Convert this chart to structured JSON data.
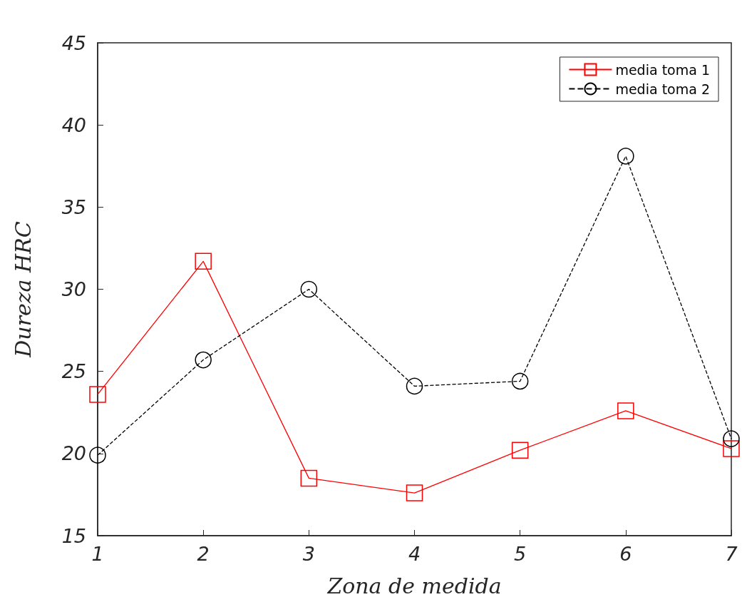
{
  "chart_data": {
    "type": "line",
    "xlabel": "Zona de medida",
    "ylabel": "Dureza HRC",
    "x": [
      1,
      2,
      3,
      4,
      5,
      6,
      7
    ],
    "series": [
      {
        "name": "media toma 1",
        "color": "#ff0000",
        "marker": "square",
        "line_style": "solid",
        "values": [
          23.6,
          31.7,
          18.5,
          17.6,
          20.2,
          22.6,
          20.3
        ]
      },
      {
        "name": "media toma 2",
        "color": "#000000",
        "marker": "circle",
        "line_style": "dashed",
        "values": [
          19.9,
          25.7,
          30.0,
          24.1,
          24.4,
          38.1,
          20.9
        ]
      }
    ],
    "xlim": [
      1,
      7
    ],
    "xticks": [
      1,
      2,
      3,
      4,
      5,
      6,
      7
    ],
    "ylim": [
      15,
      45
    ],
    "yticks": [
      15,
      20,
      25,
      30,
      35,
      40,
      45
    ],
    "grid": false,
    "legend": "top right"
  }
}
